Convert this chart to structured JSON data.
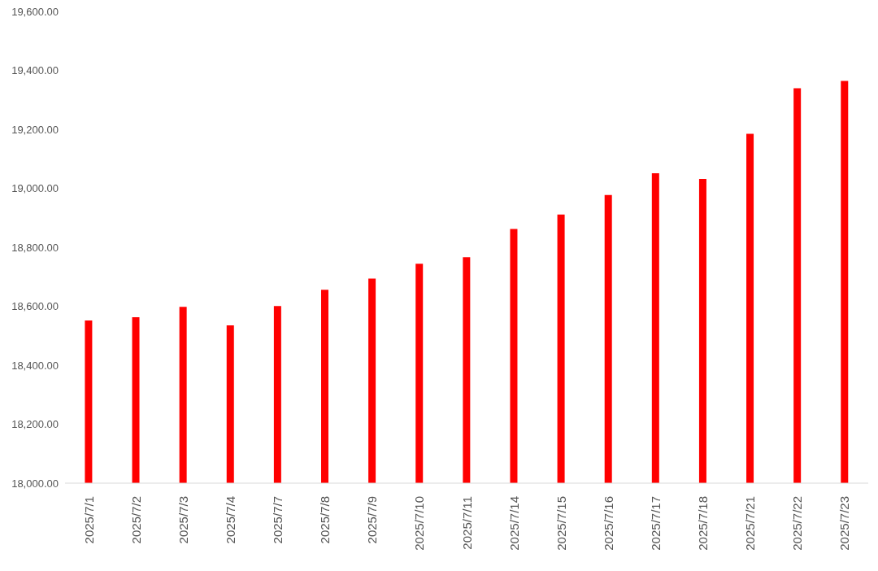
{
  "chart_data": {
    "type": "bar",
    "categories": [
      "2025/7/1",
      "2025/7/2",
      "2025/7/3",
      "2025/7/4",
      "2025/7/7",
      "2025/7/8",
      "2025/7/9",
      "2025/7/10",
      "2025/7/11",
      "2025/7/14",
      "2025/7/15",
      "2025/7/16",
      "2025/7/17",
      "2025/7/18",
      "2025/7/21",
      "2025/7/22",
      "2025/7/23"
    ],
    "values": [
      18552,
      18563,
      18598,
      18535,
      18601,
      18656,
      18694,
      18744,
      18766,
      18862,
      18911,
      18977,
      19051,
      19032,
      19185,
      19339,
      19364
    ],
    "color": "#ff0000",
    "ylim": [
      18000,
      19600
    ],
    "yticks": [
      {
        "value": 18000,
        "label": "18,000.00"
      },
      {
        "value": 18200,
        "label": "18,200.00"
      },
      {
        "value": 18400,
        "label": "18,400.00"
      },
      {
        "value": 18600,
        "label": "18,600.00"
      },
      {
        "value": 18800,
        "label": "18,800.00"
      },
      {
        "value": 19000,
        "label": "19,000.00"
      },
      {
        "value": 19200,
        "label": "19,200.00"
      },
      {
        "value": 19400,
        "label": "19,400.00"
      },
      {
        "value": 19600,
        "label": "19,600.00"
      }
    ],
    "grid": false,
    "legend": false
  }
}
